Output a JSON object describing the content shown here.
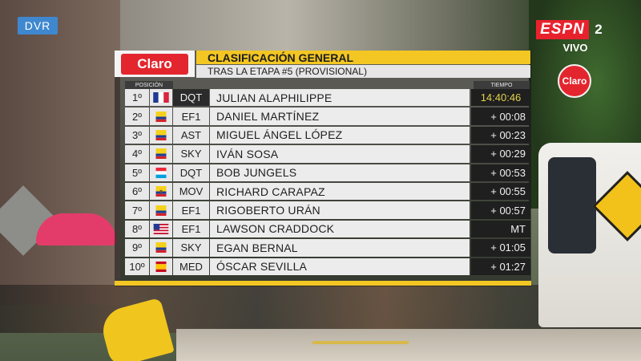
{
  "overlay": {
    "dvr_label": "DVR",
    "network": "ESPN",
    "channel": "2",
    "live_label": "VIVO",
    "corner_logo": "Claro"
  },
  "board": {
    "sponsor": "Claro",
    "title": "CLASIFICACIÓN GENERAL",
    "subtitle": "TRAS LA ETAPA #5 (PROVISIONAL)",
    "header_position": "POSICIÓN",
    "header_time": "TIEMPO",
    "colors": {
      "title_bg": "#f3c623",
      "row_bg": "#ececec",
      "time_bg": "#1f1f1f",
      "leader_time": "#e4d34a"
    },
    "rows": [
      {
        "pos": "1º",
        "flag": "france-flag-icon",
        "team": "DQT",
        "name": "JULIAN ALAPHILIPPE",
        "time": "14:40:46"
      },
      {
        "pos": "2º",
        "flag": "colombia-flag-icon",
        "team": "EF1",
        "name": "DANIEL MARTÍNEZ",
        "time": "+ 00:08"
      },
      {
        "pos": "3º",
        "flag": "colombia-flag-icon",
        "team": "AST",
        "name": "MIGUEL ÁNGEL LÓPEZ",
        "time": "+ 00:23"
      },
      {
        "pos": "4º",
        "flag": "colombia-flag-icon",
        "team": "SKY",
        "name": "IVÁN SOSA",
        "time": "+ 00:29"
      },
      {
        "pos": "5º",
        "flag": "luxembourg-flag-icon",
        "team": "DQT",
        "name": "BOB JUNGELS",
        "time": "+ 00:53"
      },
      {
        "pos": "6º",
        "flag": "ecuador-flag-icon",
        "team": "MOV",
        "name": "RICHARD CARAPAZ",
        "time": "+ 00:55"
      },
      {
        "pos": "7º",
        "flag": "colombia-flag-icon",
        "team": "EF1",
        "name": "RIGOBERTO URÁN",
        "time": "+ 00:57"
      },
      {
        "pos": "8º",
        "flag": "usa-flag-icon",
        "team": "EF1",
        "name": "LAWSON CRADDOCK",
        "time": "MT"
      },
      {
        "pos": "9º",
        "flag": "colombia-flag-icon",
        "team": "SKY",
        "name": "EGAN BERNAL",
        "time": "+ 01:05"
      },
      {
        "pos": "10º",
        "flag": "spain-flag-icon",
        "team": "MED",
        "name": "ÓSCAR SEVILLA",
        "time": "+ 01:27"
      }
    ]
  }
}
